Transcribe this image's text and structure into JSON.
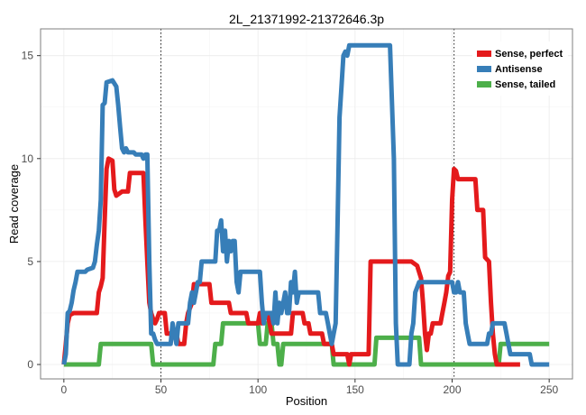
{
  "chart_data": {
    "type": "line",
    "title": "2L_21371992-21372646.3p",
    "xlabel": "Position",
    "ylabel": "Read coverage",
    "xlim": [
      -12,
      262
    ],
    "ylim": [
      -0.7,
      16.3
    ],
    "xticks": [
      0,
      50,
      100,
      150,
      200,
      250
    ],
    "yticks": [
      0,
      5,
      10,
      15
    ],
    "vlines": [
      50,
      201
    ],
    "grid": true,
    "legend_position": "top-right",
    "series": [
      {
        "name": "Sense, perfect",
        "color": "#E41A1C",
        "points": [
          [
            0,
            0
          ],
          [
            1,
            1
          ],
          [
            2,
            2
          ],
          [
            3,
            2.4
          ],
          [
            5,
            2.5
          ],
          [
            17,
            2.5
          ],
          [
            18,
            3.5
          ],
          [
            19,
            3.8
          ],
          [
            20,
            4.2
          ],
          [
            21,
            7
          ],
          [
            22,
            9.5
          ],
          [
            23,
            10
          ],
          [
            25,
            9.9
          ],
          [
            26,
            8.5
          ],
          [
            27,
            8.2
          ],
          [
            30,
            8.4
          ],
          [
            33,
            8.4
          ],
          [
            34,
            9.3
          ],
          [
            41,
            9.3
          ],
          [
            42,
            7
          ],
          [
            43,
            5
          ],
          [
            44,
            3
          ],
          [
            45,
            2.5
          ],
          [
            46,
            2.2
          ],
          [
            47,
            2
          ],
          [
            48,
            2.2
          ],
          [
            49,
            2.5
          ],
          [
            52,
            2.5
          ],
          [
            53,
            1.5
          ],
          [
            58,
            1.5
          ],
          [
            59,
            1
          ],
          [
            62,
            1
          ],
          [
            63,
            2
          ],
          [
            64,
            2.5
          ],
          [
            66,
            3
          ],
          [
            67,
            3.9
          ],
          [
            75,
            3.9
          ],
          [
            76,
            3
          ],
          [
            85,
            3
          ],
          [
            86,
            2.5
          ],
          [
            94,
            2.5
          ],
          [
            95,
            2
          ],
          [
            100,
            2
          ],
          [
            101,
            2.5
          ],
          [
            102,
            2
          ],
          [
            103,
            2.5
          ],
          [
            105,
            2.5
          ],
          [
            106,
            2
          ],
          [
            107,
            1.5
          ],
          [
            117,
            1.5
          ],
          [
            118,
            2.5
          ],
          [
            123,
            2.5
          ],
          [
            124,
            2
          ],
          [
            126,
            2
          ],
          [
            127,
            1.5
          ],
          [
            133,
            1.5
          ],
          [
            134,
            1
          ],
          [
            138,
            1
          ],
          [
            139,
            0.5
          ],
          [
            146,
            0.5
          ],
          [
            147,
            0
          ],
          [
            148,
            0.5
          ],
          [
            157,
            0.5
          ],
          [
            158,
            5
          ],
          [
            179,
            5
          ],
          [
            182,
            4.8
          ],
          [
            184,
            4.2
          ],
          [
            185,
            3
          ],
          [
            186,
            1.5
          ],
          [
            187,
            0.7
          ],
          [
            188,
            1.5
          ],
          [
            189,
            1.5
          ],
          [
            190,
            2
          ],
          [
            194,
            2
          ],
          [
            195,
            2.5
          ],
          [
            196,
            3
          ],
          [
            197,
            3.5
          ],
          [
            198,
            4.3
          ],
          [
            199,
            4.5
          ],
          [
            200,
            8
          ],
          [
            201,
            9.5
          ],
          [
            202,
            9.4
          ],
          [
            203,
            9
          ],
          [
            212,
            9
          ],
          [
            213,
            7.5
          ],
          [
            216,
            7.5
          ],
          [
            217,
            5.2
          ],
          [
            219,
            5
          ],
          [
            220,
            3
          ],
          [
            221,
            1.5
          ],
          [
            222,
            0.5
          ],
          [
            223,
            0
          ],
          [
            235,
            0
          ]
        ]
      },
      {
        "name": "Antisense",
        "color": "#377EB8",
        "points": [
          [
            0,
            0
          ],
          [
            1,
            0.5
          ],
          [
            2,
            2.5
          ],
          [
            3,
            2.6
          ],
          [
            4,
            3
          ],
          [
            5,
            3.6
          ],
          [
            6,
            4
          ],
          [
            7,
            4.5
          ],
          [
            11,
            4.5
          ],
          [
            12,
            4.6
          ],
          [
            15,
            4.7
          ],
          [
            16,
            5
          ],
          [
            17,
            5.8
          ],
          [
            18,
            6.5
          ],
          [
            19,
            8
          ],
          [
            20,
            12.6
          ],
          [
            21,
            12.7
          ],
          [
            22,
            13.7
          ],
          [
            25,
            13.8
          ],
          [
            27,
            13.5
          ],
          [
            28,
            12.6
          ],
          [
            29,
            11.5
          ],
          [
            30,
            10.5
          ],
          [
            31,
            10.3
          ],
          [
            32,
            10.5
          ],
          [
            33,
            10.3
          ],
          [
            36,
            10.3
          ],
          [
            37,
            10.2
          ],
          [
            40,
            10.2
          ],
          [
            41,
            10
          ],
          [
            42,
            10.2
          ],
          [
            43,
            10.2
          ],
          [
            44,
            5
          ],
          [
            45,
            1.5
          ],
          [
            46,
            1.5
          ],
          [
            47,
            1.2
          ],
          [
            48,
            1
          ],
          [
            55,
            1
          ],
          [
            56,
            2
          ],
          [
            57,
            1.5
          ],
          [
            58,
            1
          ],
          [
            59,
            2
          ],
          [
            64,
            2
          ],
          [
            65,
            3
          ],
          [
            66,
            3.5
          ],
          [
            67,
            3
          ],
          [
            68,
            3.5
          ],
          [
            69,
            4
          ],
          [
            70,
            4
          ],
          [
            71,
            5
          ],
          [
            78,
            5
          ],
          [
            79,
            6.5
          ],
          [
            80,
            6.5
          ],
          [
            81,
            7
          ],
          [
            82,
            5.5
          ],
          [
            83,
            6.5
          ],
          [
            84,
            5
          ],
          [
            85,
            6
          ],
          [
            86,
            5.5
          ],
          [
            87,
            6
          ],
          [
            88,
            6
          ],
          [
            89,
            4
          ],
          [
            90,
            3.5
          ],
          [
            91,
            4.5
          ],
          [
            101,
            4.5
          ],
          [
            102,
            3
          ],
          [
            103,
            2
          ],
          [
            104,
            2.5
          ],
          [
            107,
            2.5
          ],
          [
            108,
            2
          ],
          [
            109,
            3.5
          ],
          [
            110,
            2
          ],
          [
            111,
            3
          ],
          [
            112,
            2.5
          ],
          [
            113,
            3
          ],
          [
            114,
            3.5
          ],
          [
            115,
            2.5
          ],
          [
            116,
            2.5
          ],
          [
            117,
            4
          ],
          [
            118,
            3.5
          ],
          [
            119,
            4.5
          ],
          [
            120,
            3
          ],
          [
            121,
            3.5
          ],
          [
            131,
            3.5
          ],
          [
            132,
            2.5
          ],
          [
            135,
            2.5
          ],
          [
            136,
            2
          ],
          [
            137,
            1.5
          ],
          [
            138,
            1
          ],
          [
            139,
            1.5
          ],
          [
            140,
            2
          ],
          [
            141,
            7
          ],
          [
            142,
            12
          ],
          [
            143,
            13.5
          ],
          [
            144,
            15
          ],
          [
            145,
            15.2
          ],
          [
            146,
            15
          ],
          [
            147,
            15.5
          ],
          [
            168,
            15.5
          ],
          [
            170,
            10
          ],
          [
            171,
            2
          ],
          [
            172,
            0
          ],
          [
            178,
            0
          ],
          [
            179,
            1.5
          ],
          [
            180,
            2
          ],
          [
            181,
            3.5
          ],
          [
            183,
            4
          ],
          [
            200,
            4
          ],
          [
            201,
            3.5
          ],
          [
            202,
            3.5
          ],
          [
            203,
            4
          ],
          [
            204,
            3.5
          ],
          [
            206,
            3.5
          ],
          [
            207,
            2
          ],
          [
            208,
            1.5
          ],
          [
            209,
            1
          ],
          [
            218,
            1
          ],
          [
            219,
            1.5
          ],
          [
            220,
            1.5
          ],
          [
            221,
            2
          ],
          [
            227,
            2
          ],
          [
            228,
            1.5
          ],
          [
            229,
            1
          ],
          [
            230,
            0.5
          ],
          [
            240,
            0.5
          ],
          [
            241,
            0
          ],
          [
            250,
            0
          ]
        ]
      },
      {
        "name": "Sense, tailed",
        "color": "#4DAF4A",
        "points": [
          [
            0,
            0
          ],
          [
            18,
            0
          ],
          [
            19,
            1
          ],
          [
            45,
            1
          ],
          [
            46,
            0
          ],
          [
            77,
            0
          ],
          [
            78,
            1
          ],
          [
            81,
            1
          ],
          [
            82,
            2
          ],
          [
            100,
            2
          ],
          [
            101,
            1
          ],
          [
            104,
            1
          ],
          [
            105,
            2
          ],
          [
            107,
            2
          ],
          [
            108,
            1
          ],
          [
            110,
            1
          ],
          [
            111,
            0
          ],
          [
            112,
            0
          ],
          [
            113,
            1
          ],
          [
            138,
            1
          ],
          [
            139,
            0
          ],
          [
            160,
            0
          ],
          [
            161,
            1.3
          ],
          [
            183,
            1.3
          ],
          [
            184,
            0
          ],
          [
            224,
            0
          ],
          [
            225,
            1
          ],
          [
            250,
            1
          ]
        ]
      }
    ]
  }
}
